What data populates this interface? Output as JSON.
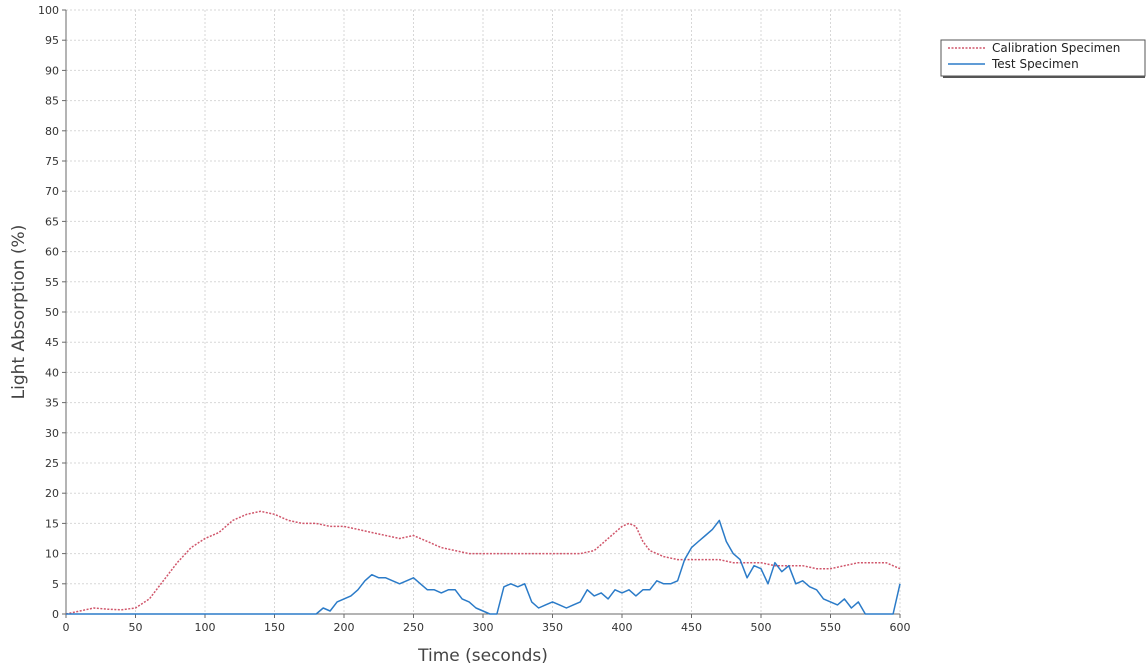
{
  "chart_data": {
    "type": "line",
    "title": "",
    "xlabel": "Time (seconds)",
    "ylabel": "Light Absorption (%)",
    "xlim": [
      0,
      600
    ],
    "ylim": [
      0,
      100
    ],
    "x_ticks": [
      0,
      50,
      100,
      150,
      200,
      250,
      300,
      350,
      400,
      450,
      500,
      550,
      600
    ],
    "y_ticks": [
      0,
      5,
      10,
      15,
      20,
      25,
      30,
      35,
      40,
      45,
      50,
      55,
      60,
      65,
      70,
      75,
      80,
      85,
      90,
      95,
      100
    ],
    "grid": true,
    "legend_position": "top-right outside",
    "series": [
      {
        "name": "Calibration Specimen",
        "color": "#d0566b",
        "style": "dotted",
        "x": [
          0,
          10,
          20,
          30,
          40,
          50,
          60,
          70,
          80,
          90,
          100,
          110,
          120,
          130,
          140,
          150,
          160,
          170,
          180,
          190,
          200,
          210,
          220,
          230,
          240,
          250,
          260,
          270,
          280,
          290,
          300,
          310,
          320,
          330,
          340,
          350,
          360,
          370,
          380,
          390,
          400,
          405,
          410,
          415,
          420,
          430,
          440,
          450,
          460,
          470,
          480,
          490,
          500,
          510,
          520,
          530,
          540,
          550,
          560,
          570,
          580,
          590,
          600
        ],
        "y": [
          0,
          0.5,
          1,
          0.8,
          0.7,
          1,
          2.5,
          5.5,
          8.5,
          11,
          12.5,
          13.5,
          15.5,
          16.5,
          17,
          16.5,
          15.5,
          15,
          15,
          14.5,
          14.5,
          14,
          13.5,
          13,
          12.5,
          13,
          12,
          11,
          10.5,
          10,
          10,
          10,
          10,
          10,
          10,
          10,
          10,
          10,
          10.5,
          12.5,
          14.5,
          15,
          14.5,
          12,
          10.5,
          9.5,
          9,
          9,
          9,
          9,
          8.5,
          8.5,
          8.5,
          8,
          8,
          8,
          7.5,
          7.5,
          8,
          8.5,
          8.5,
          8.5,
          7.5
        ]
      },
      {
        "name": "Test Specimen",
        "color": "#2b7bc8",
        "style": "solid",
        "x": [
          0,
          50,
          100,
          150,
          175,
          180,
          185,
          190,
          195,
          200,
          205,
          210,
          215,
          220,
          225,
          230,
          235,
          240,
          245,
          250,
          255,
          260,
          265,
          270,
          275,
          280,
          285,
          290,
          295,
          300,
          305,
          310,
          315,
          320,
          325,
          330,
          335,
          340,
          345,
          350,
          355,
          360,
          365,
          370,
          375,
          380,
          385,
          390,
          395,
          400,
          405,
          410,
          415,
          420,
          425,
          430,
          435,
          440,
          445,
          450,
          455,
          460,
          465,
          470,
          475,
          480,
          485,
          490,
          495,
          500,
          505,
          510,
          515,
          520,
          525,
          530,
          535,
          540,
          545,
          550,
          555,
          560,
          565,
          570,
          575,
          580,
          585,
          590,
          595,
          600
        ],
        "y": [
          0,
          0,
          0,
          0,
          0,
          0,
          1,
          0.5,
          2,
          2.5,
          3,
          4,
          5.5,
          6.5,
          6,
          6,
          5.5,
          5,
          5.5,
          6,
          5,
          4,
          4,
          3.5,
          4,
          4,
          2.5,
          2,
          1,
          0.5,
          0,
          0,
          4.5,
          5,
          4.5,
          5,
          2,
          1,
          1.5,
          2,
          1.5,
          1,
          1.5,
          2,
          4,
          3,
          3.5,
          2.5,
          4,
          3.5,
          4,
          3,
          4,
          4,
          5.5,
          5,
          5,
          5.5,
          9,
          11,
          12,
          13,
          14,
          15.5,
          12,
          10,
          9,
          6,
          8,
          7.5,
          5,
          8.5,
          7,
          8,
          5,
          5.5,
          4.5,
          4,
          2.5,
          2,
          1.5,
          2.5,
          1,
          2,
          0,
          0,
          0,
          0,
          0,
          5
        ]
      }
    ]
  }
}
